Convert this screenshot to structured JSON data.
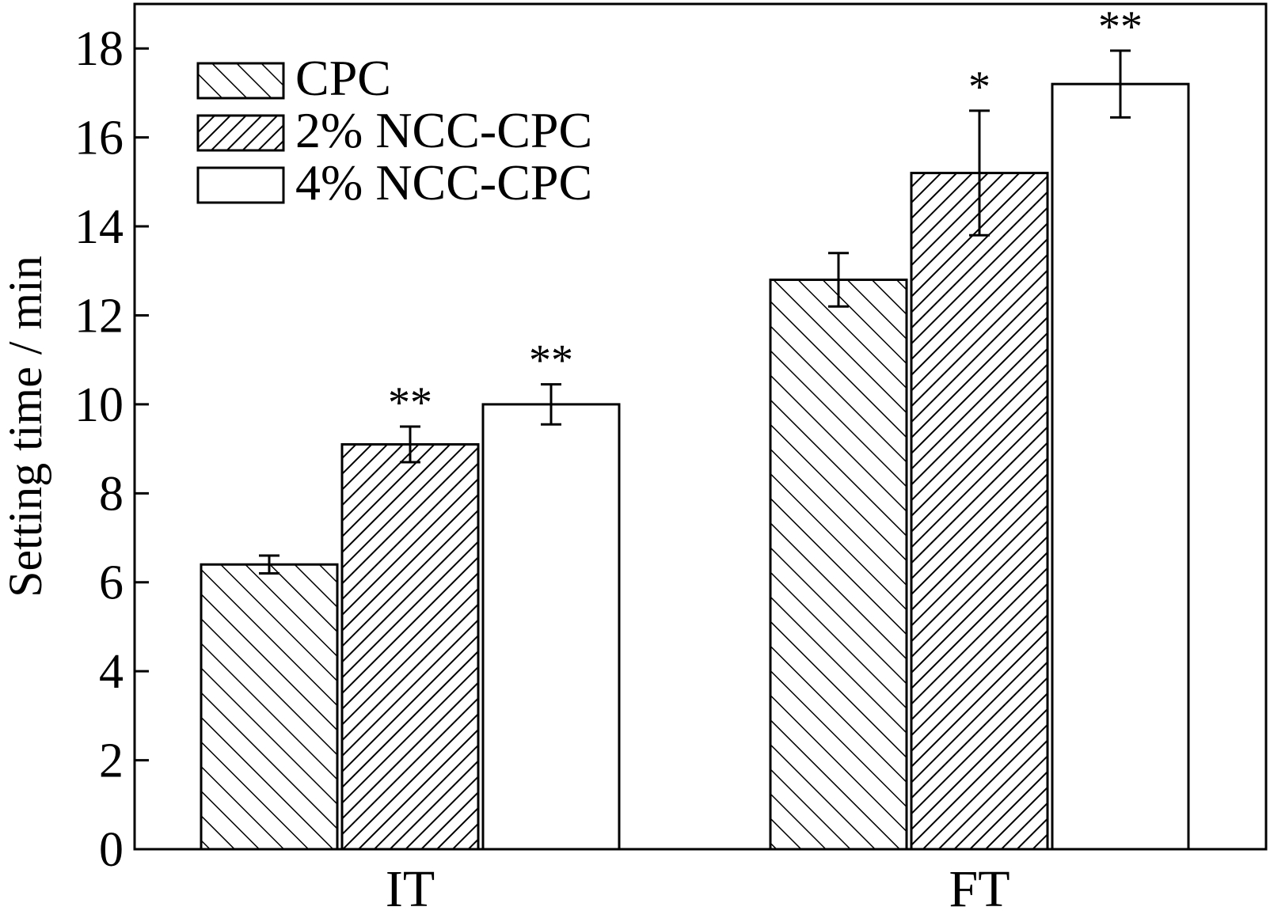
{
  "chart_data": {
    "type": "bar",
    "title": "",
    "xlabel": "",
    "ylabel": "Setting time / min",
    "ylim": [
      0,
      19
    ],
    "yticks": [
      0,
      2,
      4,
      6,
      8,
      10,
      12,
      14,
      16,
      18
    ],
    "categories": [
      "IT",
      "FT"
    ],
    "series": [
      {
        "name": "CPC",
        "pattern": "back-diagonal",
        "values": [
          6.4,
          12.8
        ],
        "errors": [
          0.2,
          0.6
        ],
        "significance": [
          "",
          ""
        ]
      },
      {
        "name": "2% NCC-CPC",
        "pattern": "forward-diagonal",
        "values": [
          9.1,
          15.2
        ],
        "errors": [
          0.4,
          1.4
        ],
        "significance": [
          "**",
          "*"
        ]
      },
      {
        "name": "4% NCC-CPC",
        "pattern": "none",
        "values": [
          10.0,
          17.2
        ],
        "errors": [
          0.45,
          0.75
        ],
        "significance": [
          "**",
          "**"
        ]
      }
    ],
    "legend": {
      "position": "top-left"
    },
    "grid": false,
    "colors": {
      "stroke": "#000000",
      "fill": "#ffffff"
    }
  }
}
